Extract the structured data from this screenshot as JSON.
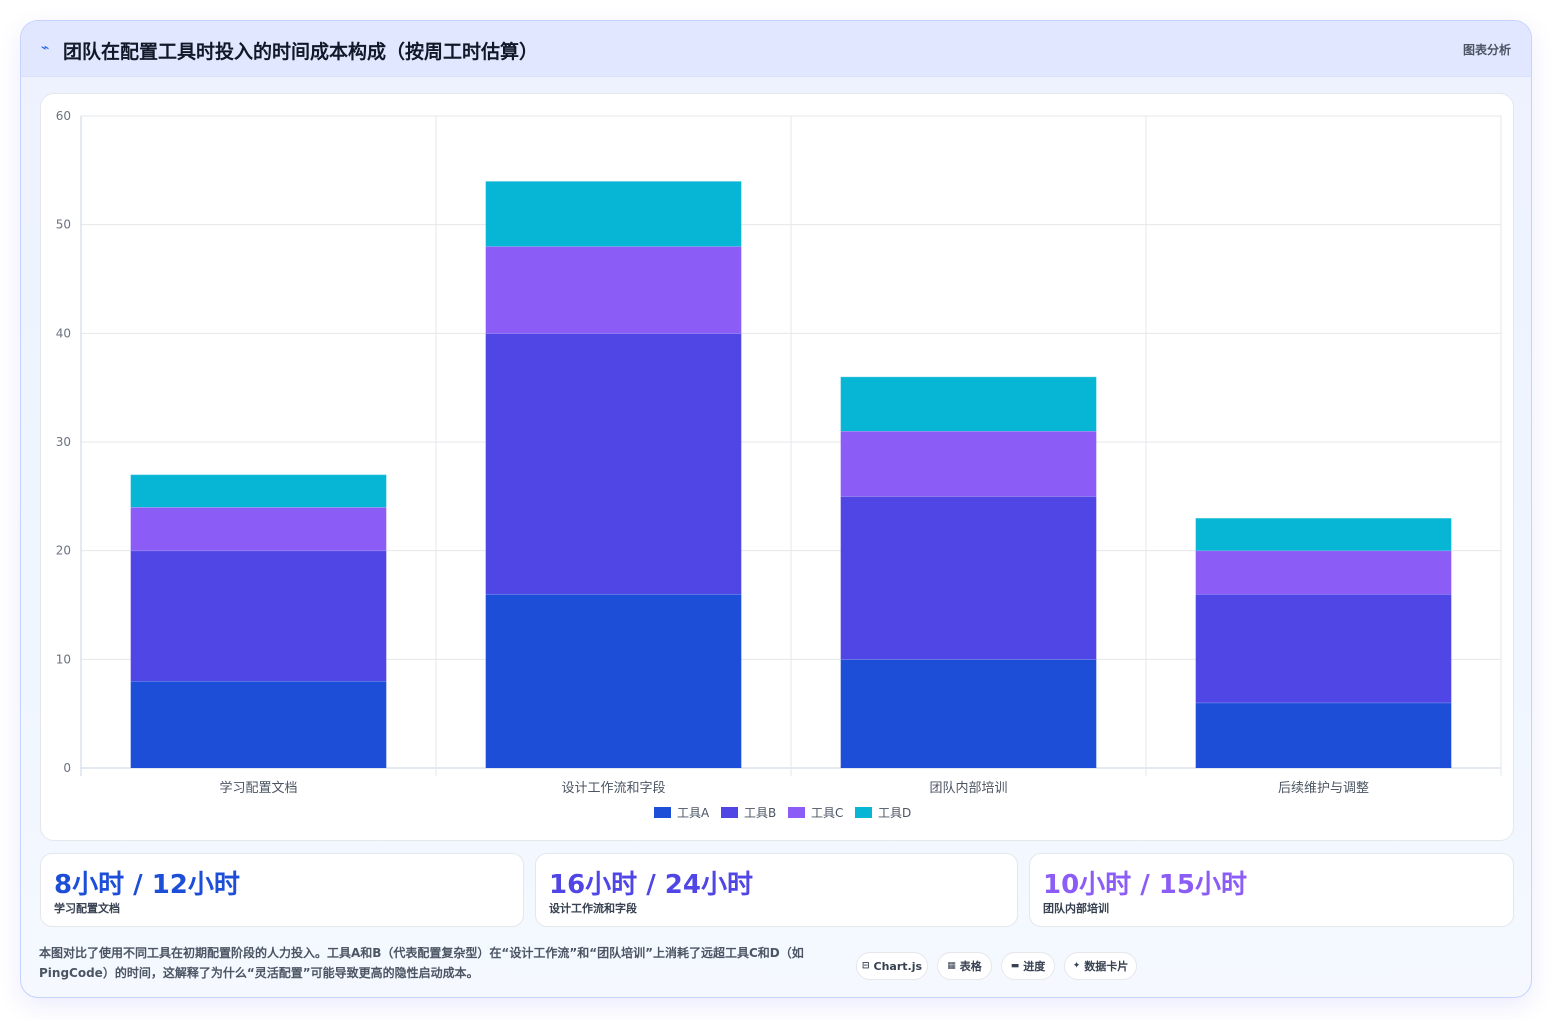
{
  "header": {
    "icon": "trend-icon",
    "title": "团队在配置工具时投入的时间成本构成（按周工时估算）",
    "right_label": "图表分析"
  },
  "chart_data": {
    "type": "bar",
    "stacked": true,
    "categories": [
      "学习配置文档",
      "设计工作流和字段",
      "团队内部培训",
      "后续维护与调整"
    ],
    "series": [
      {
        "name": "工具A",
        "color": "#1d4ed8",
        "values": [
          8,
          16,
          10,
          6
        ]
      },
      {
        "name": "工具B",
        "color": "#4f46e5",
        "values": [
          12,
          24,
          15,
          10
        ]
      },
      {
        "name": "工具C",
        "color": "#8b5cf6",
        "values": [
          4,
          8,
          6,
          4
        ]
      },
      {
        "name": "工具D",
        "color": "#06b6d4",
        "values": [
          3,
          6,
          5,
          3
        ]
      }
    ],
    "ylim": [
      0,
      60
    ],
    "yticks": [
      0,
      10,
      20,
      30,
      40,
      50,
      60
    ],
    "grid": true,
    "legend": "bottom-center"
  },
  "stats": [
    {
      "value": "8小时 / 12小时",
      "label": "学习配置文档",
      "color": "#1d4ed8"
    },
    {
      "value": "16小时 / 24小时",
      "label": "设计工作流和字段",
      "color": "#4f46e5"
    },
    {
      "value": "10小时 / 15小时",
      "label": "团队内部培训",
      "color": "#8b5cf6"
    }
  ],
  "footnote": "本图对比了使用不同工具在初期配置阶段的人力投入。工具A和B（代表配置复杂型）在“设计工作流”和“团队培训”上消耗了远超工具C和D（如PingCode）的时间，这解释了为什么“灵活配置”可能导致更高的隐性启动成本。",
  "pills": [
    {
      "icon": "⊟",
      "icon_name": "chart-icon",
      "label": "Chart.js"
    },
    {
      "icon": "▦",
      "icon_name": "table-icon",
      "label": "表格"
    },
    {
      "icon": "▬",
      "icon_name": "progress-icon",
      "label": "进度"
    },
    {
      "icon": "✦",
      "icon_name": "card-icon",
      "label": "数据卡片"
    }
  ]
}
